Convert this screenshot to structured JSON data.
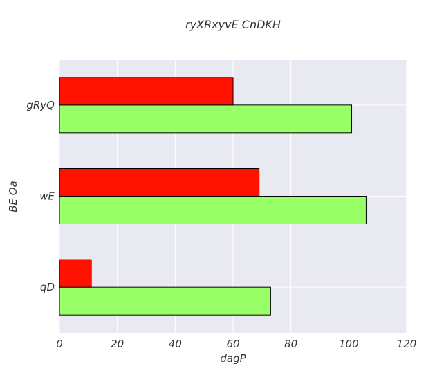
{
  "chart_data": {
    "type": "bar",
    "orientation": "horizontal",
    "title": "ryXRxyvE CnDKH",
    "xlabel": "dagP",
    "ylabel": "BE Oa",
    "categories": [
      "qD",
      "wE",
      "gRyQ"
    ],
    "series": [
      {
        "values": [
          73,
          106,
          101
        ],
        "color": "#99ff66"
      },
      {
        "values": [
          11,
          69,
          60
        ],
        "color": "#ff1100"
      }
    ],
    "xlim": [
      0,
      120
    ],
    "xticks": [
      0,
      20,
      40,
      60,
      80,
      100,
      120
    ],
    "grid": true,
    "background": "#e9e9f2",
    "bar_edge_color": "#000000"
  }
}
